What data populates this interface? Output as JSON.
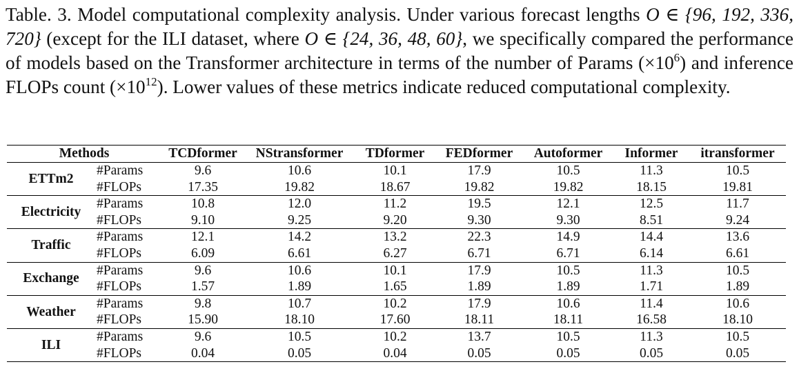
{
  "caption": {
    "p1": "Table. 3. Model computational complexity analysis. Under various forecast lengths ",
    "p2": "O ∈ {96, 192, 336, 720}",
    "p3": " (except for the ILI dataset, where ",
    "p4": "O ∈ {24, 36, 48, 60}",
    "p5": ", we specifically compared the performance of models based on the Transformer architecture in terms of the number of Params (×10",
    "sup1": "6",
    "p6": ") and inference FLOPs count (×10",
    "sup2": "12",
    "p7": "). Lower values of these metrics indicate reduced computational complexity."
  },
  "table": {
    "methods_header": "Methods",
    "columns": [
      "TCDformer",
      "NStransformer",
      "TDformer",
      "FEDformer",
      "Autoformer",
      "Informer",
      "itransformer"
    ],
    "metric_labels": [
      "#Params",
      "#FLOPs"
    ],
    "datasets": [
      {
        "name": "ETTm2",
        "params": [
          "9.6",
          "10.6",
          "10.1",
          "17.9",
          "10.5",
          "11.3",
          "10.5"
        ],
        "flops": [
          "17.35",
          "19.82",
          "18.67",
          "19.82",
          "19.82",
          "18.15",
          "19.81"
        ]
      },
      {
        "name": "Electricity",
        "params": [
          "10.8",
          "12.0",
          "11.2",
          "19.5",
          "12.1",
          "12.5",
          "11.7"
        ],
        "flops": [
          "9.10",
          "9.25",
          "9.20",
          "9.30",
          "9.30",
          "8.51",
          "9.24"
        ]
      },
      {
        "name": "Traffic",
        "params": [
          "12.1",
          "14.2",
          "13.2",
          "22.3",
          "14.9",
          "14.4",
          "13.6"
        ],
        "flops": [
          "6.09",
          "6.61",
          "6.27",
          "6.71",
          "6.71",
          "6.14",
          "6.61"
        ]
      },
      {
        "name": "Exchange",
        "params": [
          "9.6",
          "10.6",
          "10.1",
          "17.9",
          "10.5",
          "11.3",
          "10.5"
        ],
        "flops": [
          "1.57",
          "1.89",
          "1.65",
          "1.89",
          "1.89",
          "1.71",
          "1.89"
        ]
      },
      {
        "name": "Weather",
        "params": [
          "9.8",
          "10.7",
          "10.2",
          "17.9",
          "10.6",
          "11.4",
          "10.6"
        ],
        "flops": [
          "15.90",
          "18.10",
          "17.60",
          "18.11",
          "18.11",
          "16.58",
          "18.10"
        ]
      },
      {
        "name": "ILI",
        "params": [
          "9.6",
          "10.5",
          "10.2",
          "13.7",
          "10.5",
          "11.3",
          "10.5"
        ],
        "flops": [
          "0.04",
          "0.05",
          "0.04",
          "0.05",
          "0.05",
          "0.05",
          "0.05"
        ]
      }
    ]
  }
}
